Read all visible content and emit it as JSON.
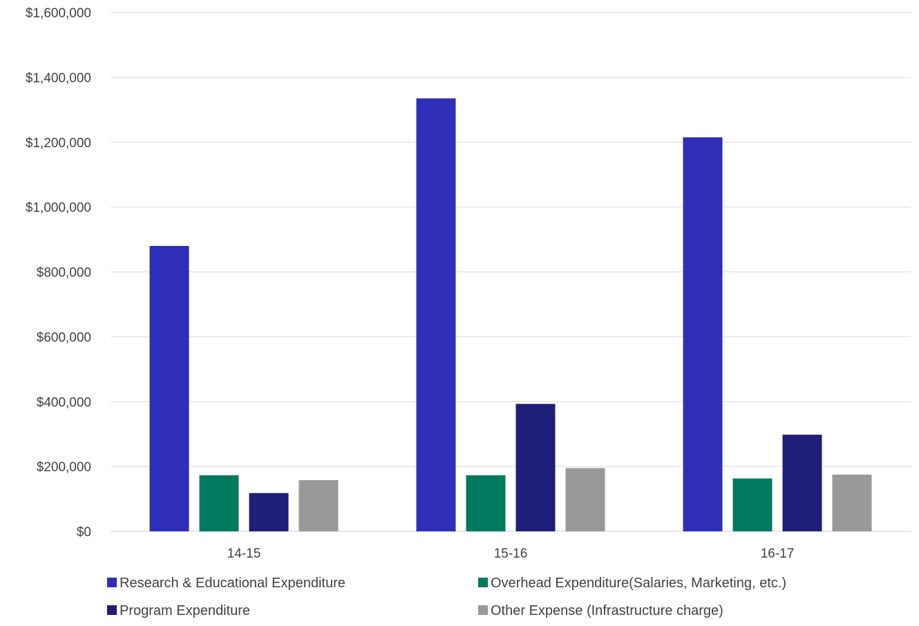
{
  "chart_data": {
    "type": "bar",
    "title": "",
    "xlabel": "",
    "ylabel": "",
    "categories": [
      "14-15",
      "15-16",
      "16-17"
    ],
    "series": [
      {
        "name": "Research & Educational Expenditure",
        "color": "#2E2EB8",
        "values": [
          880000,
          1335000,
          1215000
        ]
      },
      {
        "name": "Overhead Expenditure(Salaries, Marketing, etc.)",
        "color": "#007A5E",
        "values": [
          173000,
          173000,
          163000
        ]
      },
      {
        "name": "Program Expenditure",
        "color": "#1F1F78",
        "values": [
          118000,
          393000,
          298000
        ]
      },
      {
        "name": "Other Expense (Infrastructure charge)",
        "color": "#999999",
        "values": [
          158000,
          195000,
          175000
        ]
      }
    ],
    "ylim": [
      0,
      1600000
    ],
    "yticks": [
      0,
      200000,
      400000,
      600000,
      800000,
      1000000,
      1200000,
      1400000,
      1600000
    ],
    "ytick_labels": [
      "$0",
      "$200,000",
      "$400,000",
      "$600,000",
      "$800,000",
      "$1,000,000",
      "$1,200,000",
      "$1,400,000",
      "$1,600,000"
    ],
    "grid": true,
    "legend_position": "bottom"
  }
}
